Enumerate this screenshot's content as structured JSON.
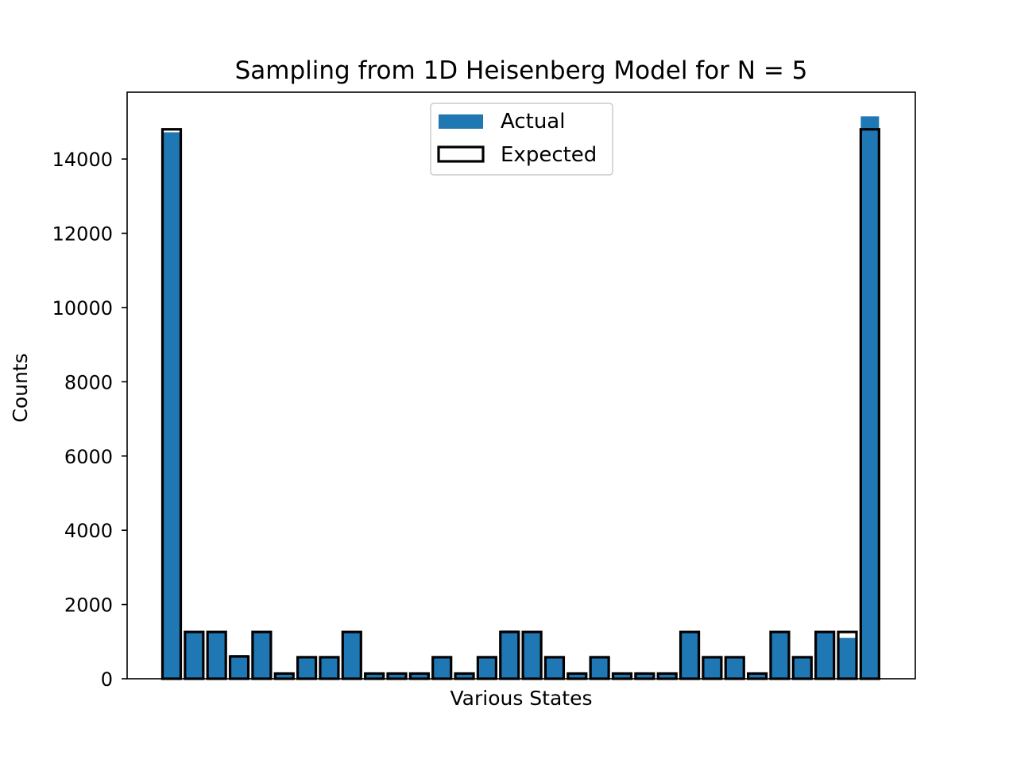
{
  "chart_data": {
    "type": "bar",
    "title": "Sampling from 1D Heisenberg Model for N = 5",
    "xlabel": "Various States",
    "ylabel": "Counts",
    "ylim": [
      0,
      15800
    ],
    "yticks": [
      0,
      2000,
      4000,
      6000,
      8000,
      10000,
      12000,
      14000
    ],
    "xticks_visible": false,
    "grid": false,
    "legend_position": "top-center",
    "colors": {
      "actual": "#1f77b4",
      "expected_edge": "#000000"
    },
    "series": [
      {
        "name": "Actual",
        "style": "filled",
        "values": [
          14720,
          1260,
          1260,
          640,
          1280,
          140,
          580,
          580,
          1270,
          140,
          140,
          140,
          580,
          140,
          580,
          1300,
          1270,
          580,
          140,
          580,
          140,
          140,
          140,
          1270,
          580,
          580,
          140,
          1270,
          580,
          1270,
          1100,
          15150
        ]
      },
      {
        "name": "Expected",
        "style": "outline",
        "values": [
          14800,
          1260,
          1260,
          600,
          1260,
          140,
          580,
          580,
          1260,
          140,
          140,
          140,
          580,
          140,
          580,
          1260,
          1260,
          580,
          140,
          580,
          140,
          140,
          140,
          1260,
          580,
          580,
          140,
          1260,
          580,
          1260,
          1260,
          14800
        ]
      }
    ]
  }
}
